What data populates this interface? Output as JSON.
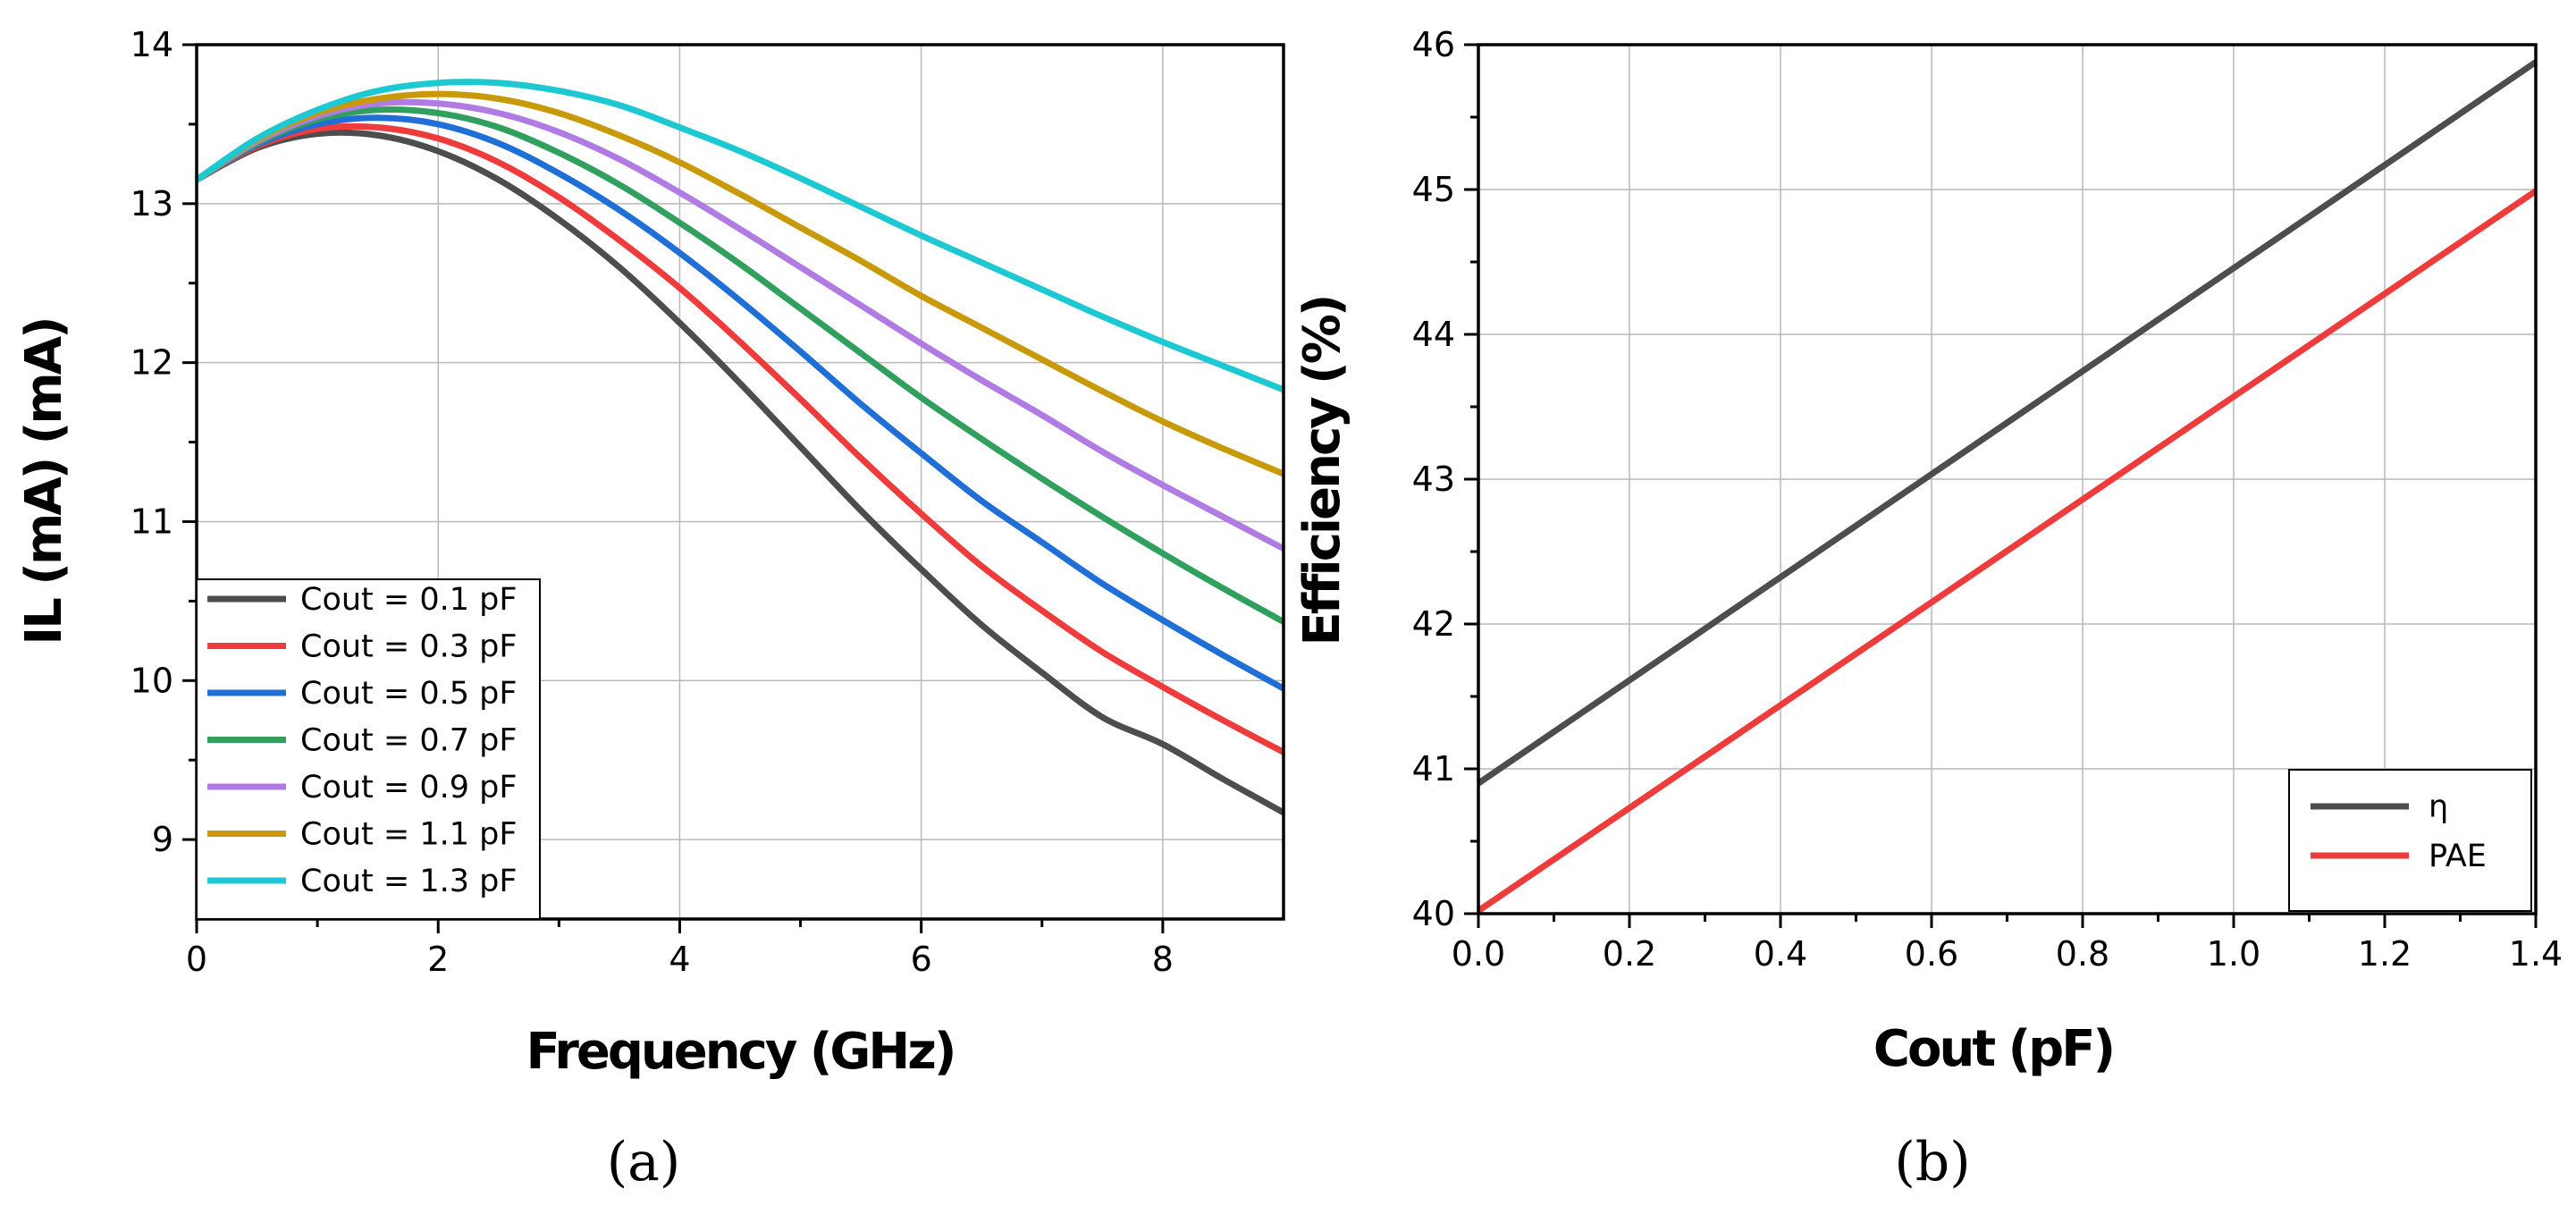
{
  "chart_data": [
    {
      "type": "line",
      "panel": "(a)",
      "xlabel": "Frequency (GHz)",
      "ylabel": "IL (mA) (mA)",
      "xlim": [
        0,
        9
      ],
      "ylim": [
        8.5,
        14
      ],
      "xticks": [
        0,
        2,
        4,
        6,
        8
      ],
      "yticks": [
        9,
        10,
        11,
        12,
        13,
        14
      ],
      "x_minor_step": 1,
      "y_minor_step": 0.5,
      "grid": true,
      "legend_position": "bottom-left",
      "x": [
        0,
        0.5,
        1,
        1.5,
        2,
        2.5,
        3,
        3.5,
        4,
        4.5,
        5,
        5.5,
        6,
        6.5,
        7,
        7.5,
        8,
        8.5,
        9
      ],
      "series": [
        {
          "name": "Cout = 0.1 pF",
          "color": "#4d4d4d",
          "values": [
            13.15,
            13.35,
            13.44,
            13.43,
            13.33,
            13.15,
            12.9,
            12.6,
            12.25,
            11.87,
            11.47,
            11.07,
            10.7,
            10.35,
            10.05,
            9.77,
            9.6,
            9.38,
            9.17
          ]
        },
        {
          "name": "Cout = 0.3 pF",
          "color": "#ee3b3b",
          "values": [
            13.15,
            13.36,
            13.47,
            13.48,
            13.41,
            13.26,
            13.04,
            12.77,
            12.47,
            12.13,
            11.77,
            11.4,
            11.05,
            10.72,
            10.44,
            10.18,
            9.96,
            9.75,
            9.55
          ]
        },
        {
          "name": "Cout = 0.5 pF",
          "color": "#1f6fd6",
          "values": [
            13.15,
            13.37,
            13.5,
            13.54,
            13.5,
            13.38,
            13.19,
            12.96,
            12.69,
            12.39,
            12.07,
            11.74,
            11.43,
            11.13,
            10.87,
            10.61,
            10.38,
            10.16,
            9.95
          ]
        },
        {
          "name": "Cout = 0.7 pF",
          "color": "#31a05e",
          "values": [
            13.15,
            13.38,
            13.53,
            13.59,
            13.57,
            13.48,
            13.32,
            13.12,
            12.88,
            12.62,
            12.34,
            12.06,
            11.78,
            11.52,
            11.27,
            11.03,
            10.8,
            10.58,
            10.37
          ]
        },
        {
          "name": "Cout = 0.9 pF",
          "color": "#b07ce3",
          "values": [
            13.15,
            13.39,
            13.55,
            13.63,
            13.63,
            13.57,
            13.45,
            13.28,
            13.07,
            12.84,
            12.6,
            12.36,
            12.12,
            11.89,
            11.67,
            11.44,
            11.23,
            11.03,
            10.83
          ]
        },
        {
          "name": "Cout = 1.1 pF",
          "color": "#c89a0a",
          "values": [
            13.15,
            13.4,
            13.57,
            13.66,
            13.69,
            13.66,
            13.57,
            13.43,
            13.26,
            13.06,
            12.85,
            12.64,
            12.42,
            12.22,
            12.02,
            11.82,
            11.63,
            11.46,
            11.3
          ]
        },
        {
          "name": "Cout = 1.3 pF",
          "color": "#1ec8d2",
          "values": [
            13.15,
            13.41,
            13.59,
            13.71,
            13.76,
            13.76,
            13.71,
            13.62,
            13.48,
            13.33,
            13.16,
            12.98,
            12.8,
            12.63,
            12.46,
            12.29,
            12.13,
            11.98,
            11.83
          ]
        }
      ],
      "caption": "(a)"
    },
    {
      "type": "line",
      "panel": "(b)",
      "xlabel": "Cout (pF)",
      "ylabel": "Efficiency (%)",
      "xlim": [
        0,
        1.4
      ],
      "ylim": [
        40,
        46
      ],
      "xticks": [
        0.0,
        0.2,
        0.4,
        0.6,
        0.8,
        1.0,
        1.2,
        1.4
      ],
      "xtick_labels": [
        "0.0",
        "0.2",
        "0.4",
        "0.6",
        "0.8",
        "1.0",
        "1.2",
        "1.4"
      ],
      "yticks": [
        40,
        41,
        42,
        43,
        44,
        45,
        46
      ],
      "x_minor_step": 0.1,
      "y_minor_step": 0.5,
      "grid": true,
      "legend_position": "bottom-right",
      "x": [
        0,
        1.4
      ],
      "series": [
        {
          "name": "η",
          "color": "#4d4d4d",
          "values": [
            40.9,
            45.88
          ]
        },
        {
          "name": "PAE",
          "color": "#ee3b3b",
          "values": [
            40.02,
            44.99
          ]
        }
      ],
      "caption": "(b)"
    }
  ]
}
